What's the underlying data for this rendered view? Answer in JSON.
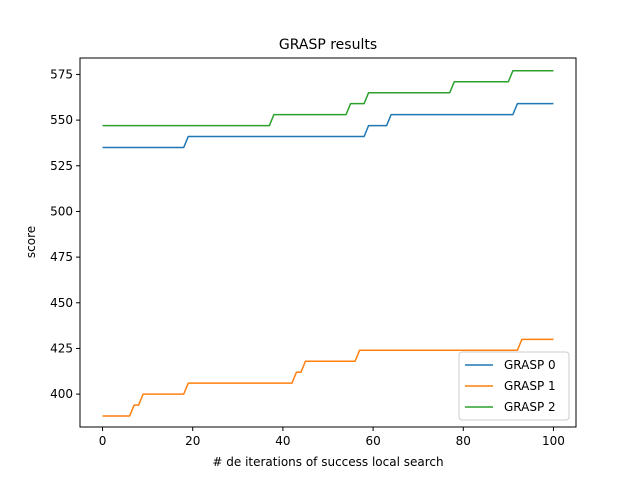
{
  "chart_data": {
    "type": "line",
    "title": "GRASP results",
    "xlabel": "# de iterations of success local search",
    "ylabel": "score",
    "xlim": [
      -5,
      105
    ],
    "ylim": [
      382,
      584
    ],
    "xticks": [
      0,
      20,
      40,
      60,
      80,
      100
    ],
    "yticks": [
      400,
      425,
      450,
      475,
      500,
      525,
      550,
      575
    ],
    "legend_position": "lower-right",
    "grid": false,
    "series": [
      {
        "name": "GRASP 0",
        "color": "#1f77b4",
        "points": [
          [
            0,
            535
          ],
          [
            18,
            535
          ],
          [
            19,
            541
          ],
          [
            58,
            541
          ],
          [
            59,
            547
          ],
          [
            63,
            547
          ],
          [
            64,
            553
          ],
          [
            91,
            553
          ],
          [
            92,
            559
          ],
          [
            100,
            559
          ]
        ]
      },
      {
        "name": "GRASP 1",
        "color": "#ff7f0e",
        "points": [
          [
            0,
            388
          ],
          [
            6,
            388
          ],
          [
            7,
            394
          ],
          [
            8,
            394
          ],
          [
            9,
            400
          ],
          [
            18,
            400
          ],
          [
            19,
            406
          ],
          [
            42,
            406
          ],
          [
            43,
            412
          ],
          [
            44,
            412
          ],
          [
            45,
            418
          ],
          [
            56,
            418
          ],
          [
            57,
            424
          ],
          [
            92,
            424
          ],
          [
            93,
            430
          ],
          [
            100,
            430
          ]
        ]
      },
      {
        "name": "GRASP 2",
        "color": "#2ca02c",
        "points": [
          [
            0,
            547
          ],
          [
            37,
            547
          ],
          [
            38,
            553
          ],
          [
            54,
            553
          ],
          [
            55,
            559
          ],
          [
            58,
            559
          ],
          [
            59,
            565
          ],
          [
            77,
            565
          ],
          [
            78,
            571
          ],
          [
            90,
            571
          ],
          [
            91,
            577
          ],
          [
            100,
            577
          ]
        ]
      }
    ]
  }
}
